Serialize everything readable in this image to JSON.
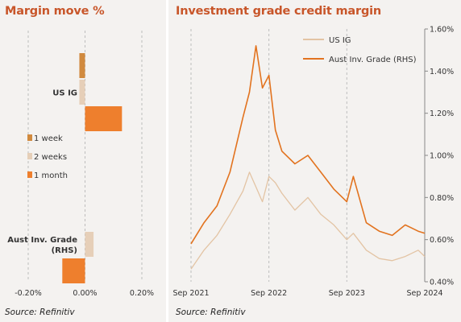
{
  "left": {
    "title": "Margin move %",
    "source": "Source: Refinitiv",
    "chart_data": {
      "type": "bar",
      "orientation": "horizontal",
      "categories": [
        "US IG",
        "Aust Inv. Grade (RHS)"
      ],
      "category_labels": [
        [
          "US IG"
        ],
        [
          "Aust Inv. Grade",
          "(RHS)"
        ]
      ],
      "series": [
        {
          "name": "1 week",
          "color": "#d18a3e",
          "values": [
            -0.02,
            0.0
          ]
        },
        {
          "name": "2 weeks",
          "color": "#e6cfb8",
          "values": [
            -0.02,
            0.03
          ]
        },
        {
          "name": "1 month",
          "color": "#ee7f2d",
          "values": [
            0.13,
            -0.08
          ]
        }
      ],
      "xlim": [
        -0.2,
        0.2
      ],
      "xticks": [
        -0.2,
        0.0,
        0.2
      ],
      "xtick_labels": [
        "-0.20%",
        "0.00%",
        "0.20%"
      ],
      "grid": "vertical dashed",
      "legend": "middle-left"
    }
  },
  "right": {
    "title": "Investment grade credit margin",
    "source": "Source: Refinitiv",
    "chart_data": {
      "type": "line",
      "xlabel": "",
      "ylabel": "",
      "xlim": [
        "2021-09",
        "2024-09"
      ],
      "xticks": [
        "Sep 2021",
        "Sep 2022",
        "Sep 2023",
        "Sep 2024"
      ],
      "ylim": [
        0.4,
        1.6
      ],
      "yticks": [
        "0.40%",
        "0.60%",
        "0.80%",
        "1.00%",
        "1.20%",
        "1.40%",
        "1.60%"
      ],
      "grid": "vertical dashed",
      "legend": "top-center",
      "series": [
        {
          "name": "US IG",
          "color": "#e3c4a4",
          "axis": "left (unlabeled)",
          "x": [
            "2021-09",
            "2021-11",
            "2022-01",
            "2022-03",
            "2022-05",
            "2022-06",
            "2022-07",
            "2022-08",
            "2022-09",
            "2022-10",
            "2022-11",
            "2023-01",
            "2023-03",
            "2023-05",
            "2023-07",
            "2023-09",
            "2023-10",
            "2023-12",
            "2024-02",
            "2024-04",
            "2024-06",
            "2024-08",
            "2024-09"
          ],
          "values": [
            0.46,
            0.55,
            0.62,
            0.72,
            0.83,
            0.92,
            0.85,
            0.78,
            0.9,
            0.87,
            0.82,
            0.74,
            0.8,
            0.72,
            0.67,
            0.6,
            0.63,
            0.55,
            0.51,
            0.5,
            0.52,
            0.55,
            0.52
          ]
        },
        {
          "name": "Aust Inv. Grade (RHS)",
          "color": "#e2731f",
          "axis": "right",
          "x": [
            "2021-09",
            "2021-11",
            "2022-01",
            "2022-03",
            "2022-05",
            "2022-06",
            "2022-07",
            "2022-08",
            "2022-09",
            "2022-10",
            "2022-11",
            "2023-01",
            "2023-03",
            "2023-05",
            "2023-07",
            "2023-09",
            "2023-10",
            "2023-12",
            "2024-02",
            "2024-04",
            "2024-06",
            "2024-08",
            "2024-09"
          ],
          "values": [
            0.58,
            0.68,
            0.76,
            0.92,
            1.18,
            1.3,
            1.52,
            1.32,
            1.38,
            1.12,
            1.02,
            0.96,
            1.0,
            0.92,
            0.84,
            0.78,
            0.9,
            0.68,
            0.64,
            0.62,
            0.67,
            0.64,
            0.63
          ]
        }
      ]
    }
  }
}
